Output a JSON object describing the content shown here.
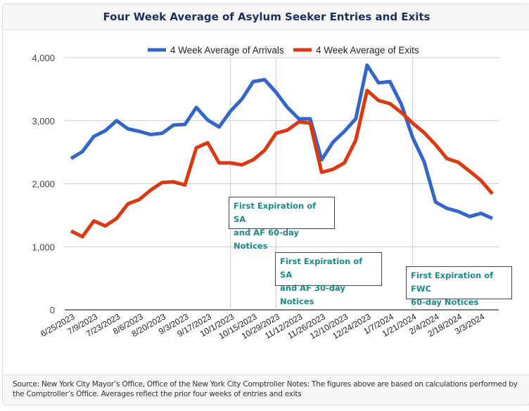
{
  "title": "Four Week Average of Asylum Seeker Entries and Exits",
  "footer": "Source: New York City Mayor’s Office, Office of the New York City Comptroller Notes: The figures above are based on calculations performed by the Comptroller’s Office. Averages reflect the prior four weeks of entries and exits",
  "colors": {
    "arrivals": "#3366cc",
    "exits": "#dc3912",
    "annotation_text": "#1a8a8a",
    "title": "#1b2f5e"
  },
  "chart_data": {
    "type": "line",
    "title": "Four Week Average of Asylum Seeker Entries and Exits",
    "xlabel": "",
    "ylabel": "",
    "ylim": [
      0,
      4000
    ],
    "yticks": [
      0,
      1000,
      2000,
      3000,
      4000
    ],
    "ytick_labels": [
      "0",
      "1,000",
      "2,000",
      "3,000",
      "4,000"
    ],
    "grid": true,
    "legend_position": "top",
    "x": [
      "6/25/2023",
      "7/2/2023",
      "7/9/2023",
      "7/16/2023",
      "7/23/2023",
      "7/30/2023",
      "8/6/2023",
      "8/13/2023",
      "8/20/2023",
      "8/27/2023",
      "9/3/2023",
      "9/10/2023",
      "9/17/2023",
      "9/24/2023",
      "10/1/2023",
      "10/8/2023",
      "10/15/2023",
      "10/22/2023",
      "10/29/2023",
      "11/5/2023",
      "11/12/2023",
      "11/19/2023",
      "11/26/2023",
      "12/3/2023",
      "12/10/2023",
      "12/17/2023",
      "12/24/2023",
      "12/31/2023",
      "1/7/2024",
      "1/14/2024",
      "1/21/2024",
      "1/28/2024",
      "2/4/2024",
      "2/11/2024",
      "2/18/2024",
      "2/25/2024",
      "3/3/2024",
      "3/10/2024"
    ],
    "xtick_labels": [
      "6/25/2023",
      "7/9/2023",
      "7/23/2023",
      "8/6/2023",
      "8/20/2023",
      "9/3/2023",
      "9/17/2023",
      "10/1/2023",
      "10/15/2023",
      "10/29/2023",
      "11/12/2023",
      "11/26/2023",
      "12/10/2023",
      "12/24/2023",
      "1/7/2024",
      "1/21/2024",
      "2/4/2024",
      "2/18/2024",
      "3/3/2024"
    ],
    "series": [
      {
        "name": "4 Week Average of Arrivals",
        "color": "#3366cc",
        "values": [
          2400,
          2510,
          2750,
          2840,
          3000,
          2870,
          2830,
          2780,
          2800,
          2930,
          2940,
          3210,
          3010,
          2900,
          3150,
          3340,
          3620,
          3650,
          3450,
          3210,
          3030,
          3030,
          2380,
          2660,
          2830,
          3030,
          3880,
          3600,
          3620,
          3260,
          2730,
          2350,
          1710,
          1610,
          1560,
          1480,
          1530,
          1450
        ]
      },
      {
        "name": "4 Week Average of Exits",
        "color": "#dc3912",
        "values": [
          1250,
          1160,
          1410,
          1330,
          1450,
          1680,
          1750,
          1900,
          2020,
          2030,
          1980,
          2570,
          2650,
          2330,
          2330,
          2300,
          2380,
          2530,
          2800,
          2850,
          2980,
          2960,
          2180,
          2230,
          2330,
          2690,
          3480,
          3320,
          3270,
          3130,
          2960,
          2810,
          2620,
          2400,
          2340,
          2200,
          2050,
          1840
        ]
      }
    ],
    "annotations": [
      {
        "x": "10/1/2023",
        "text": "First Expiration of SA and AF 60-day Notices",
        "lines": [
          "First Expiration of SA",
          "and AF 60-day Notices"
        ]
      },
      {
        "x": "10/29/2023",
        "text": "First Expiration of SA and AF 30-day Notices",
        "lines": [
          "First Expiration of SA",
          "and AF 30-day Notices"
        ]
      },
      {
        "x": "1/21/2024",
        "text": "First Expiration of FWC 60-day Notices",
        "lines": [
          "First Expiration of FWC",
          "60-day Notices"
        ]
      }
    ]
  }
}
